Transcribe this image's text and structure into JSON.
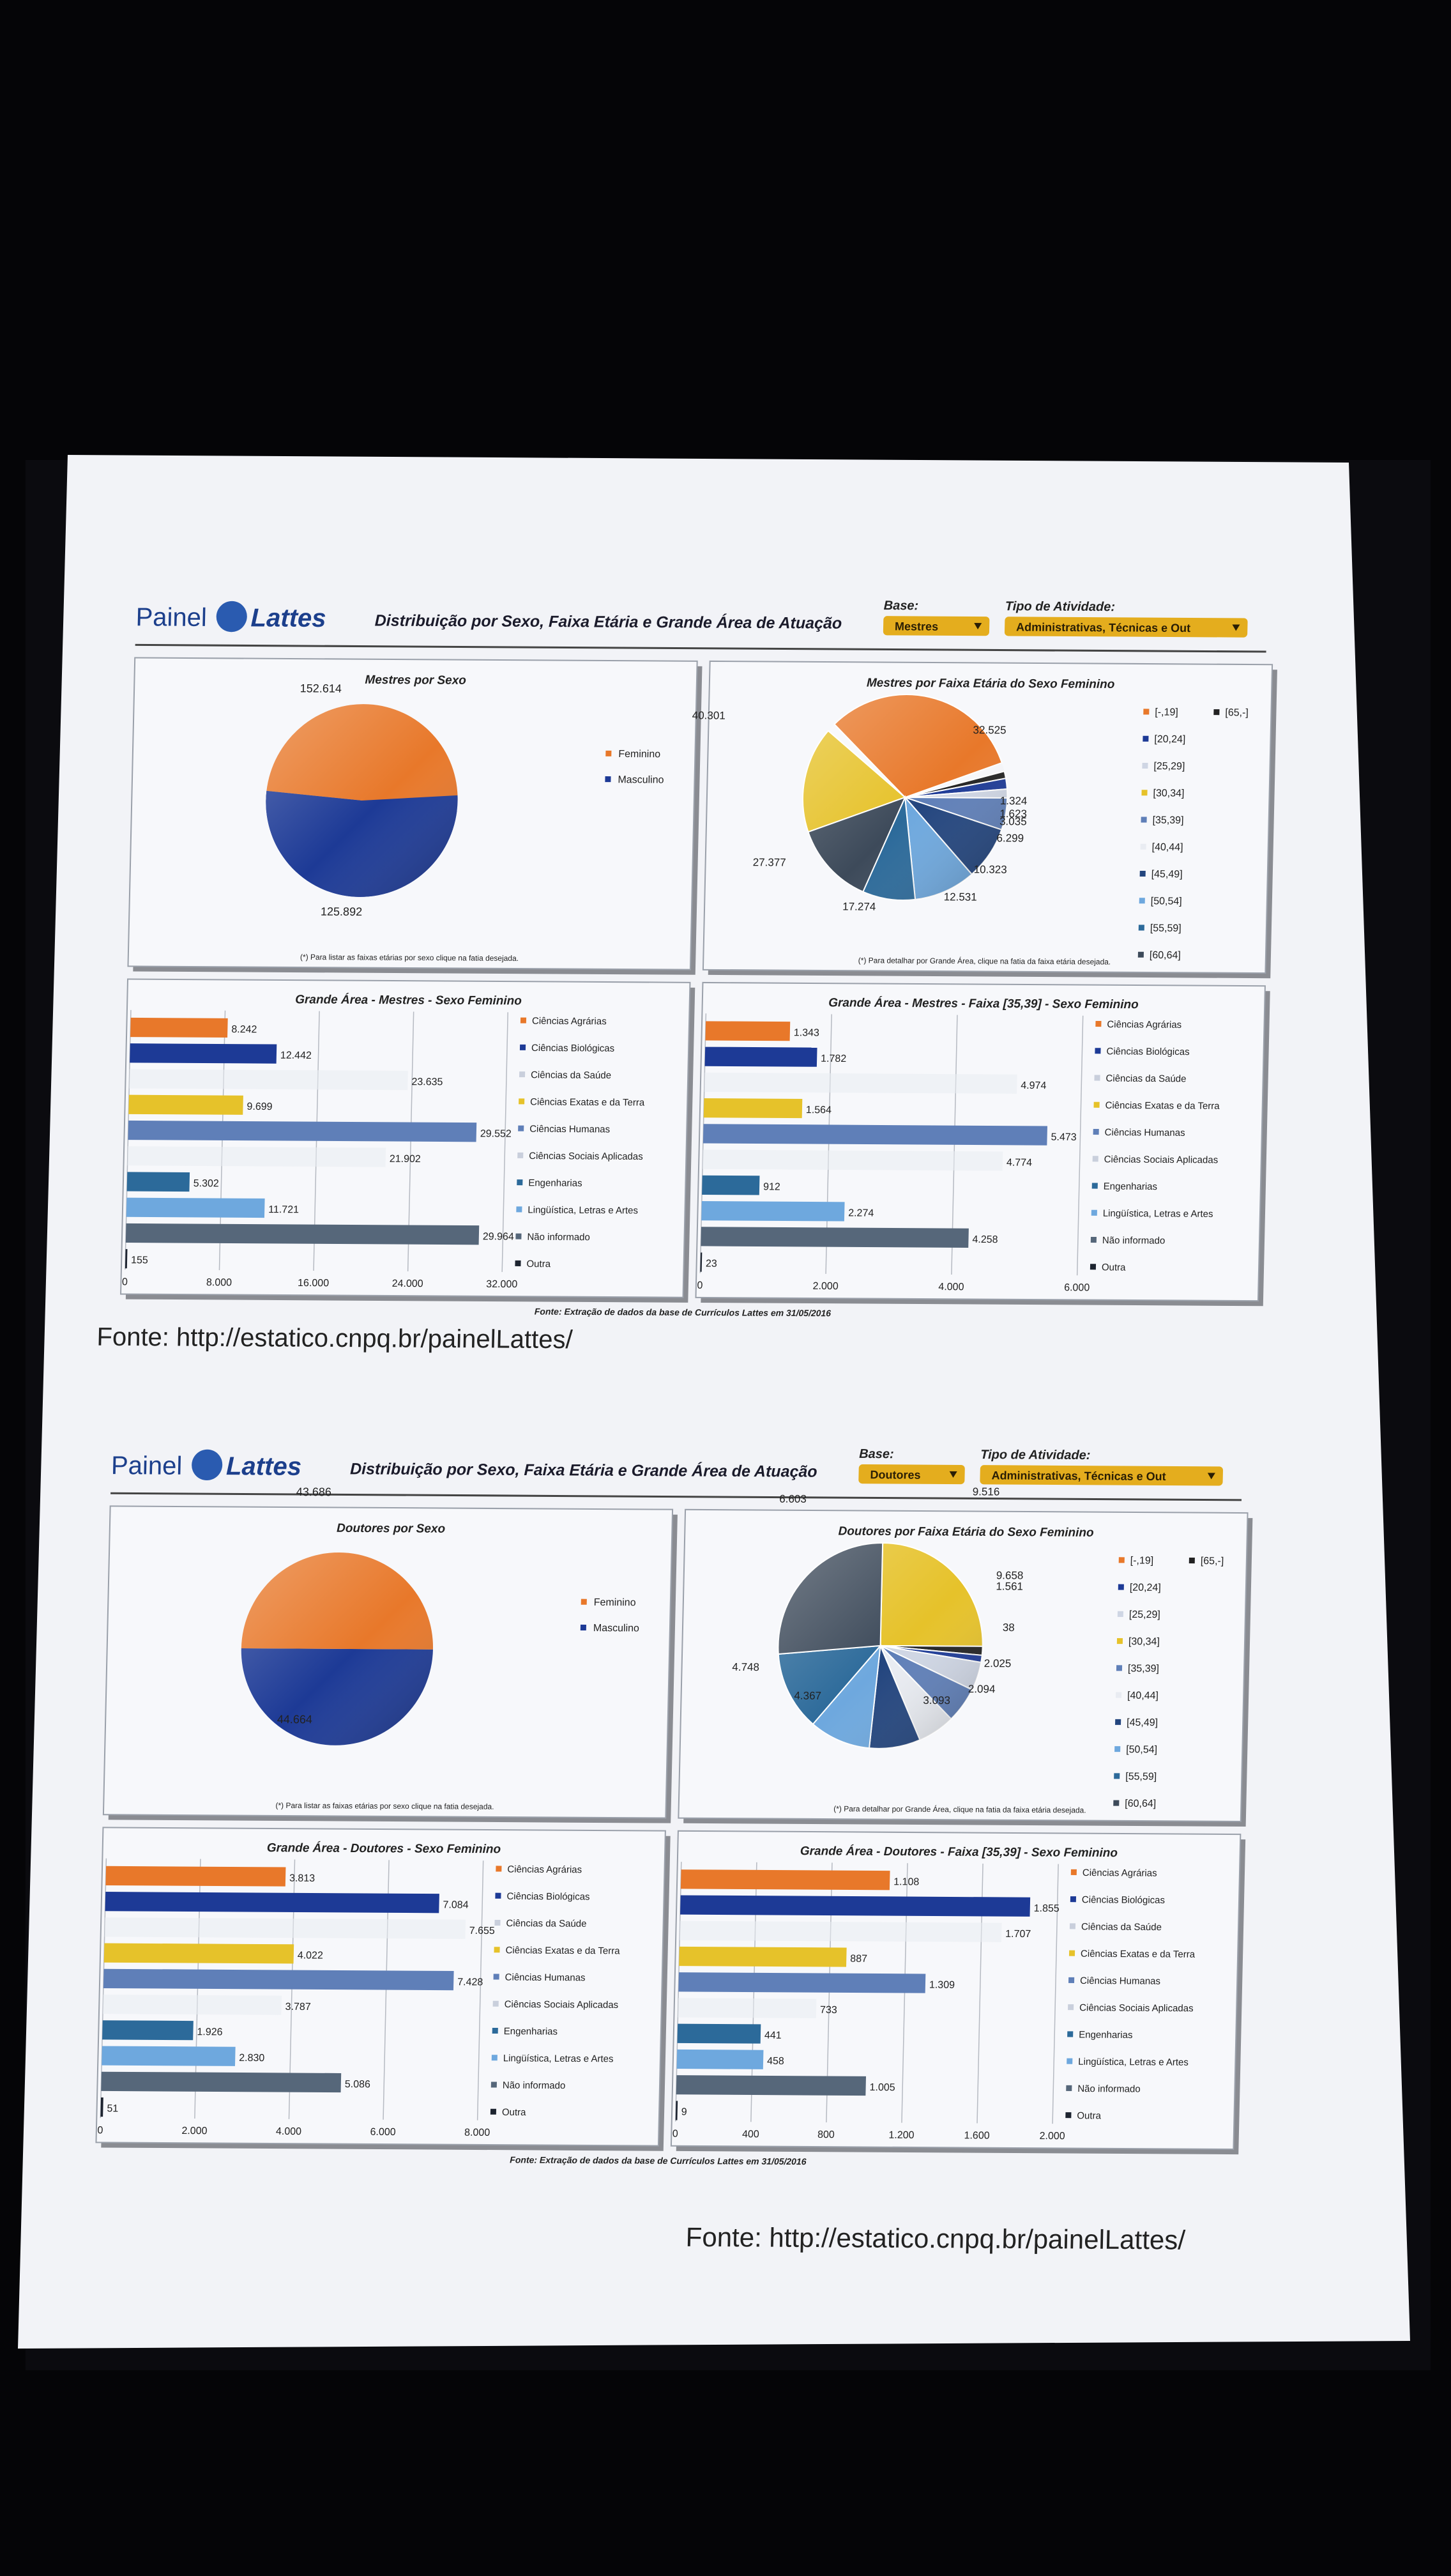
{
  "panels": [
    {
      "logo": {
        "painel": "Painel",
        "lattes": "Lattes"
      },
      "header_title": "Distribuição por Sexo, Faixa Etária e Grande Área de Atuação",
      "base_label": "Base:",
      "base_value": "Mestres",
      "tipo_label": "Tipo de Atividade:",
      "tipo_value": "Administrativas, Técnicas e Out",
      "fonte_extracao": "Fonte: Extração de dados da base de Currículos Lattes em 31/05/2016",
      "fonte_url": "Fonte: http://estatico.cnpq.br/painelLattes/",
      "sex_chart": {
        "title": "Mestres por Sexo",
        "labels": [
          "152.614",
          "125.892"
        ],
        "legend": [
          "Feminino",
          "Masculino"
        ],
        "note": "(*) Para listar as faixas etárias por sexo clique na fatia desejada."
      },
      "age_chart": {
        "title": "Mestres por Faixa Etária do Sexo Feminino",
        "labels": [
          "40.301",
          "32.525",
          "1.324",
          "1.623",
          "3.035",
          "6.299",
          "10.323",
          "12.531",
          "17.274",
          "27.377"
        ],
        "legend": [
          "[-,19]",
          "[65,-]",
          "[20,24]",
          "[25,29]",
          "[30,34]",
          "[35,39]",
          "[40,44]",
          "[45,49]",
          "[50,54]",
          "[55,59]",
          "[60,64]"
        ],
        "note": "(*) Para detalhar por Grande Área, clique na fatia da faixa etária desejada."
      },
      "area_chart": {
        "title": "Grande Área - Mestres - Sexo Feminino",
        "axis": [
          "0",
          "8.000",
          "16.000",
          "24.000",
          "32.000"
        ],
        "values": [
          "8.242",
          "12.442",
          "23.635",
          "9.699",
          "29.552",
          "21.902",
          "5.302",
          "11.721",
          "29.964",
          "155"
        ],
        "legend": [
          "Ciências Agrárias",
          "Ciências Biológicas",
          "Ciências da Saúde",
          "Ciências Exatas e da Terra",
          "Ciências Humanas",
          "Ciências Sociais Aplicadas",
          "Engenharias",
          "Lingüística, Letras e Artes",
          "Não informado",
          "Outra"
        ]
      },
      "faixa_chart": {
        "title": "Grande Área - Mestres - Faixa [35,39] - Sexo Feminino",
        "axis": [
          "0",
          "2.000",
          "4.000",
          "6.000"
        ],
        "values": [
          "1.343",
          "1.782",
          "4.974",
          "1.564",
          "5.473",
          "4.774",
          "912",
          "2.274",
          "4.258",
          "23"
        ],
        "legend": [
          "Ciências Agrárias",
          "Ciências Biológicas",
          "Ciências da Saúde",
          "Ciências Exatas e da Terra",
          "Ciências Humanas",
          "Ciências Sociais Aplicadas",
          "Engenharias",
          "Lingüística, Letras e Artes",
          "Não informado",
          "Outra"
        ]
      }
    },
    {
      "logo": {
        "painel": "Painel",
        "lattes": "Lattes"
      },
      "header_title": "Distribuição por Sexo, Faixa Etária e Grande Área de Atuação",
      "base_label": "Base:",
      "base_value": "Doutores",
      "tipo_label": "Tipo de Atividade:",
      "tipo_value": "Administrativas, Técnicas e Out",
      "fonte_extracao": "Fonte: Extração de dados da base de Currículos Lattes em 31/05/2016",
      "fonte_url": "Fonte: http://estatico.cnpq.br/painelLattes/",
      "sex_chart": {
        "title": "Doutores por Sexo",
        "labels": [
          "43.686",
          "44.664"
        ],
        "legend": [
          "Feminino",
          "Masculino"
        ],
        "note": "(*) Para listar as faixas etárias por sexo clique na fatia desejada."
      },
      "age_chart": {
        "title": "Doutores por Faixa Etária do Sexo Feminino",
        "labels": [
          "9.516",
          "9.658",
          "1.561",
          "38",
          "2.025",
          "2.094",
          "3.093",
          "4.367",
          "4.748",
          "6.603"
        ],
        "legend": [
          "[-,19]",
          "[65,-]",
          "[20,24]",
          "[25,29]",
          "[30,34]",
          "[35,39]",
          "[40,44]",
          "[45,49]",
          "[50,54]",
          "[55,59]",
          "[60,64]"
        ],
        "note": "(*) Para detalhar por Grande Área, clique na fatia da faixa etária desejada."
      },
      "area_chart": {
        "title": "Grande Área - Doutores - Sexo Feminino",
        "axis": [
          "0",
          "2.000",
          "4.000",
          "6.000",
          "8.000"
        ],
        "values": [
          "3.813",
          "7.084",
          "7.655",
          "4.022",
          "7.428",
          "3.787",
          "1.926",
          "2.830",
          "5.086",
          "51"
        ],
        "legend": [
          "Ciências Agrárias",
          "Ciências Biológicas",
          "Ciências da Saúde",
          "Ciências Exatas e da Terra",
          "Ciências Humanas",
          "Ciências Sociais Aplicadas",
          "Engenharias",
          "Lingüística, Letras e Artes",
          "Não informado",
          "Outra"
        ]
      },
      "faixa_chart": {
        "title": "Grande Área - Doutores - Faixa [35,39] - Sexo Feminino",
        "axis": [
          "0",
          "400",
          "800",
          "1.200",
          "1.600",
          "2.000"
        ],
        "values": [
          "1.108",
          "1.855",
          "1.707",
          "887",
          "1.309",
          "733",
          "441",
          "458",
          "1.005",
          "9"
        ],
        "legend": [
          "Ciências Agrárias",
          "Ciências Biológicas",
          "Ciências da Saúde",
          "Ciências Exatas e da Terra",
          "Ciências Humanas",
          "Ciências Sociais Aplicadas",
          "Engenharias",
          "Lingüística, Letras e Artes",
          "Não informado",
          "Outra"
        ]
      }
    }
  ],
  "colors": {
    "background": "#050507",
    "paper": "#f2f3f7",
    "orange": "#e8782a",
    "navy": "#1d3a96",
    "yellow": "#e6c22a",
    "steel": "#5f7fb8",
    "teal": "#2c6a9a",
    "sky": "#6ea8de",
    "slate": "#56677a",
    "pale": "#e9ecf2",
    "dark": "#1d2430",
    "gold": "#e4ad1e"
  }
}
